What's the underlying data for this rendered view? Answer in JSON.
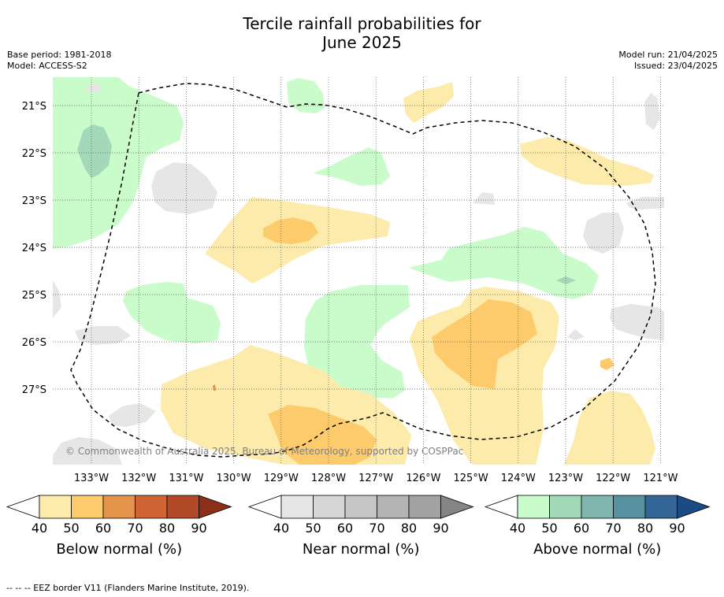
{
  "title": {
    "line1": "Tercile rainfall probabilities for",
    "line2": "June 2025"
  },
  "meta": {
    "base_period": "Base period: 1981-2018",
    "model": "Model: ACCESS-S2",
    "model_run": "Model run: 21/04/2025",
    "issued": "Issued: 23/04/2025"
  },
  "map": {
    "latitude_labels": [
      "21°S",
      "22°S",
      "23°S",
      "24°S",
      "25°S",
      "26°S",
      "27°S"
    ],
    "longitude_labels": [
      "133°W",
      "132°W",
      "131°W",
      "130°W",
      "129°W",
      "128°W",
      "127°W",
      "126°W",
      "125°W",
      "124°W",
      "123°W",
      "122°W",
      "121°W"
    ],
    "copyright": "© Commonwealth of Australia 2025, Bureau of Meteorology, supported by COSPPac"
  },
  "legends": [
    {
      "name": "Below normal (%)",
      "ticks": [
        "40",
        "50",
        "60",
        "70",
        "80",
        "90"
      ],
      "colors": [
        "#fdebab",
        "#fdcb6c",
        "#e3934a",
        "#cf6535",
        "#b24a28",
        "#8c2f18"
      ]
    },
    {
      "name": "Near normal (%)",
      "ticks": [
        "40",
        "50",
        "60",
        "70",
        "80",
        "90"
      ],
      "colors": [
        "#e6e6e6",
        "#d6d6d6",
        "#c6c6c6",
        "#b4b4b4",
        "#a2a2a2",
        "#858585"
      ]
    },
    {
      "name": "Above normal (%)",
      "ticks": [
        "40",
        "50",
        "60",
        "70",
        "80",
        "90"
      ],
      "colors": [
        "#c9fcca",
        "#a3d8b9",
        "#80b6b0",
        "#5892a1",
        "#336697",
        "#1b4a85"
      ]
    }
  ],
  "footer": "--  --  -- EEZ border V11 (Flanders Marine Institute, 2019)."
}
